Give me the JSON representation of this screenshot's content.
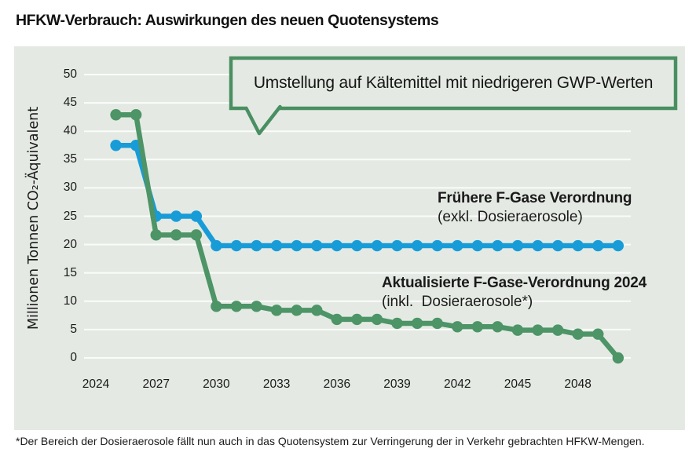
{
  "title": "HFKW-Verbrauch: Auswirkungen des neuen Quotensystems",
  "footnote": "*Der Bereich der Dosieraerosole fällt nun auch in das Quotensystem zur Verringerung der in Verkehr gebrachten HFKW-Mengen.",
  "callout": {
    "text": "Umstellung auf Kältemittel mit niedrigeren GWP-Werten"
  },
  "colors": {
    "chart_bg": "#e4eae3",
    "grid": "#fafcfa",
    "blue": "#189cd8",
    "green": "#4d9467",
    "callout_border": "#4a8f62",
    "text": "#1a1a1a"
  },
  "chart_data": {
    "type": "line",
    "title": "HFKW-Verbrauch: Auswirkungen des neuen Quotensystems",
    "ylabel": "Millionen Tonnen CO₂-Äquivalent",
    "xlabel": "",
    "ylim": [
      0,
      50
    ],
    "y_ticks": [
      50,
      45,
      40,
      35,
      30,
      25,
      20,
      15,
      10,
      5,
      0
    ],
    "x_ticks": [
      2024,
      2027,
      2030,
      2033,
      2036,
      2039,
      2042,
      2045,
      2048
    ],
    "x_range": [
      2024,
      2050
    ],
    "grid": "horizontal",
    "legend_position": "annotations-inline",
    "annotation": "Umstellung auf Kältemittel mit niedrigeren GWP-Werten",
    "series": [
      {
        "name": "Frühere F-Gase Verordnung",
        "subtitle": "(exkl. Dosieraerosole)",
        "color": "#189cd8",
        "x": [
          2025,
          2026,
          2027,
          2028,
          2029,
          2030,
          2031,
          2032,
          2033,
          2034,
          2035,
          2036,
          2037,
          2038,
          2039,
          2040,
          2041,
          2042,
          2043,
          2044,
          2045,
          2046,
          2047,
          2048,
          2049,
          2050
        ],
        "values": [
          37.5,
          37.5,
          25,
          25,
          25,
          19.8,
          19.8,
          19.8,
          19.8,
          19.8,
          19.8,
          19.8,
          19.8,
          19.8,
          19.8,
          19.8,
          19.8,
          19.8,
          19.8,
          19.8,
          19.8,
          19.8,
          19.8,
          19.8,
          19.8,
          19.8
        ]
      },
      {
        "name": "Aktualisierte F-Gase-Verordnung 2024",
        "subtitle": "(inkl.  Dosieraerosole*)",
        "color": "#4d9467",
        "x": [
          2025,
          2026,
          2027,
          2028,
          2029,
          2030,
          2031,
          2032,
          2033,
          2034,
          2035,
          2036,
          2037,
          2038,
          2039,
          2040,
          2041,
          2042,
          2043,
          2044,
          2045,
          2046,
          2047,
          2048,
          2049,
          2050
        ],
        "values": [
          42.9,
          42.9,
          21.7,
          21.7,
          21.7,
          9.1,
          9.1,
          9.1,
          8.4,
          8.4,
          8.4,
          6.8,
          6.8,
          6.8,
          6.1,
          6.1,
          6.1,
          5.5,
          5.5,
          5.5,
          4.9,
          4.9,
          4.9,
          4.2,
          4.2,
          0
        ]
      }
    ]
  }
}
